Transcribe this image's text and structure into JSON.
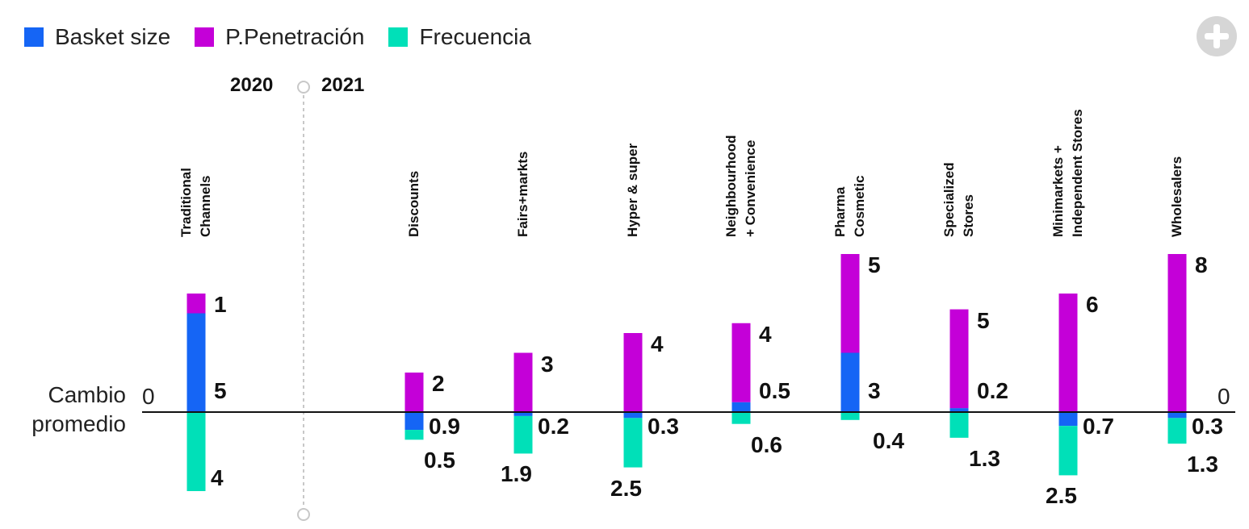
{
  "legend": [
    {
      "label": "Basket size",
      "color": "#1565f5"
    },
    {
      "label": "P.Penetración",
      "color": "#c400d8"
    },
    {
      "label": "Frecuencia",
      "color": "#00e0b8"
    }
  ],
  "buttons": {
    "expand_icon": "plus-icon"
  },
  "years": {
    "left": "2020",
    "right": "2021"
  },
  "baseline": {
    "label_line1": "Cambio",
    "label_line2": "promedio",
    "zero_left": "0",
    "zero_right": "0"
  },
  "chart_data": {
    "type": "bar",
    "categories": [
      "Traditional\nChannels",
      "Discounts",
      "Fairs+markts",
      "Hyper & super",
      "Neighbourhood\n+ Convenience",
      "Pharma\nCosmetic",
      "Specialized\nStores",
      "Minimarkets +\nIndependent Stores",
      "Wholesalers"
    ],
    "series": [
      {
        "name": "Basket size",
        "values": [
          5,
          -0.9,
          -0.2,
          -0.3,
          0.5,
          3,
          0.2,
          -0.7,
          -0.3
        ]
      },
      {
        "name": "P.Penetración",
        "values": [
          1,
          2,
          3,
          4,
          4,
          5,
          5,
          6,
          8
        ]
      },
      {
        "name": "Frecuencia",
        "values": [
          -4,
          -0.5,
          -1.9,
          -2.5,
          -0.6,
          -0.4,
          -1.3,
          -2.5,
          -1.3
        ]
      }
    ],
    "value_labels": [
      {
        "basket": "5",
        "pen": "1",
        "freq": "4"
      },
      {
        "basket": "0.9",
        "pen": "2",
        "freq": "0.5"
      },
      {
        "basket": "0.2",
        "pen": "3",
        "freq": "1.9"
      },
      {
        "basket": "0.3",
        "pen": "4",
        "freq": "2.5"
      },
      {
        "basket": "0.5",
        "pen": "4",
        "freq": "0.6"
      },
      {
        "basket": "3",
        "pen": "5",
        "freq": "0.4"
      },
      {
        "basket": "0.2",
        "pen": "5",
        "freq": "1.3"
      },
      {
        "basket": "0.7",
        "pen": "6",
        "freq": "2.5"
      },
      {
        "basket": "0.3",
        "pen": "8",
        "freq": "1.3"
      }
    ],
    "colors": {
      "basket": "#1565f5",
      "pen": "#c400d8",
      "freq": "#00e0b8"
    },
    "ylabel": "Cambio promedio"
  }
}
